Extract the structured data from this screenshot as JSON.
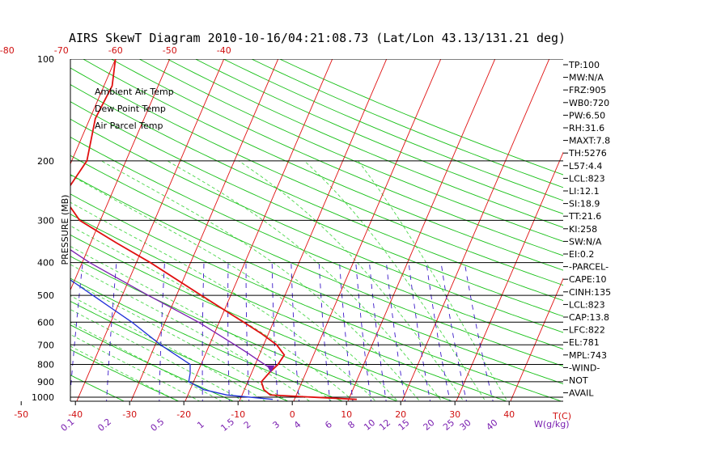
{
  "chart_data": {
    "type": "line",
    "title": "AIRS SkewT Diagram 2010-10-16/04:21:08.73 (Lat/Lon 43.13/131.21 deg)",
    "ylabel": "PRESSURE (MB)",
    "x_unit_label": "T(C)",
    "mixing_ratio_unit_label": "W(g/kg)",
    "pressure_levels": [
      100,
      200,
      300,
      400,
      500,
      600,
      700,
      800,
      900,
      1000
    ],
    "pressure_range": [
      100,
      1050
    ],
    "bottom_temp_ticks": [
      -50,
      -40,
      -30,
      -20,
      -10,
      0,
      10,
      20,
      30,
      40
    ],
    "top_temp_ticks": [
      -120,
      -110,
      -100,
      -90,
      -80,
      -70,
      -60,
      -50,
      -40
    ],
    "mixing_ratio_labels": [
      "0.1",
      "0.2",
      "0.5",
      "1",
      "1.5",
      "2",
      "3",
      "4",
      "6",
      "8",
      "10",
      "12",
      "15",
      "20",
      "25",
      "30",
      "40"
    ],
    "legend": [
      {
        "label": "Ambient Air Temp",
        "color": "#e01010"
      },
      {
        "label": "Dew Point Temp",
        "color": "#1f2fd8"
      },
      {
        "label": "Air Parcel Temp",
        "color": "#7a1fb0"
      }
    ],
    "series": [
      {
        "name": "Ambient Air Temp",
        "color": "#e01010",
        "points": [
          [
            1015,
            11.5
          ],
          [
            985,
            -4.8
          ],
          [
            950,
            -6.4
          ],
          [
            900,
            -7.5
          ],
          [
            850,
            -6.8
          ],
          [
            800,
            -5.8
          ],
          [
            750,
            -5.4
          ],
          [
            700,
            -7.6
          ],
          [
            650,
            -11.2
          ],
          [
            600,
            -15.5
          ],
          [
            500,
            -25.4
          ],
          [
            400,
            -37.4
          ],
          [
            350,
            -45.2
          ],
          [
            300,
            -53.8
          ],
          [
            255,
            -58.8
          ],
          [
            200,
            -57.2
          ],
          [
            150,
            -59.0
          ],
          [
            120,
            -58.5
          ],
          [
            100,
            -60.0
          ]
        ]
      },
      {
        "name": "Dew Point Temp",
        "color": "#1f2fd8",
        "points": [
          [
            1015,
            -4.0
          ],
          [
            985,
            -12.8
          ],
          [
            950,
            -17.5
          ],
          [
            900,
            -20.9
          ],
          [
            850,
            -21.3
          ],
          [
            800,
            -22.0
          ],
          [
            700,
            -29.0
          ],
          [
            600,
            -36.1
          ],
          [
            500,
            -45.4
          ],
          [
            400,
            -56.8
          ],
          [
            300,
            -71.7
          ],
          [
            200,
            -88.6
          ],
          [
            150,
            -97.9
          ],
          [
            120,
            -95.3
          ],
          [
            100,
            -102.0
          ]
        ]
      },
      {
        "name": "Air Parcel Temp",
        "color": "#7a1fb0",
        "points": [
          [
            823,
            -6.8
          ],
          [
            780,
            -9.6
          ],
          [
            743,
            -12.1
          ],
          [
            700,
            -15.3
          ],
          [
            600,
            -23.8
          ],
          [
            500,
            -35.2
          ],
          [
            400,
            -48.6
          ],
          [
            300,
            -63.7
          ],
          [
            200,
            -86.5
          ],
          [
            150,
            -102.0
          ],
          [
            140,
            -106.5
          ]
        ]
      }
    ],
    "parcel_marker": {
      "pressure": 823,
      "temp": -6.8
    }
  },
  "indices": [
    "TP:100",
    "MW:N/A",
    "FRZ:905",
    "WB0:720",
    "PW:6.50",
    "RH:31.6",
    "MAXT:7.8",
    "TH:5276",
    "L57:4.4",
    "LCL:823",
    "LI:12.1",
    "SI:18.9",
    "TT:21.6",
    "KI:258",
    "SW:N/A",
    "EI:0.2",
    "-PARCEL-",
    "CAPE:10",
    "CINH:135",
    "LCL:823",
    "CAP:13.8",
    "LFC:822",
    "EL:781",
    "MPL:743",
    "-WIND-",
    "NOT",
    "AVAIL"
  ],
  "colors": {
    "isotherm": "#e01010",
    "dry_adiabat": "#16c016",
    "moist_adiabat": "#4cd84c",
    "mixing_ratio": "#3a18c8",
    "isobar": "#000000"
  }
}
